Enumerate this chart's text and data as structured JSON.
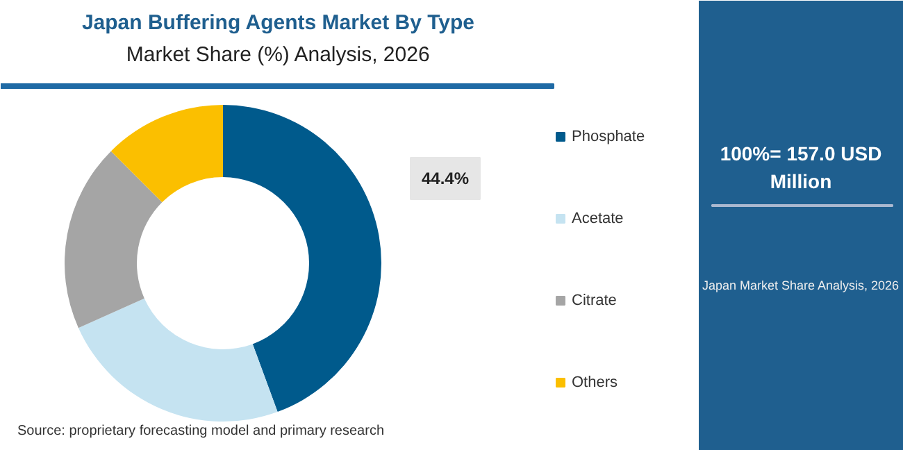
{
  "chart_data": {
    "type": "donut",
    "title": "Japan Buffering Agents Market By Type",
    "subtitle": "Market Share (%) Analysis, 2026",
    "categories": [
      "Phosphate",
      "Acetate",
      "Citrate",
      "Others"
    ],
    "values": [
      44.4,
      23.9,
      19.2,
      12.5
    ],
    "colors": [
      "#005a8c",
      "#c5e3f1",
      "#a5a5a5",
      "#fbbf00"
    ],
    "value_labels": [
      "44.4%",
      null,
      null,
      null
    ],
    "legend": "right",
    "annotations": [
      "100%= 157.0 USD Million",
      "Japan Market Share Analysis, 2026",
      "Source: proprietary forecasting model and primary research"
    ]
  }
}
